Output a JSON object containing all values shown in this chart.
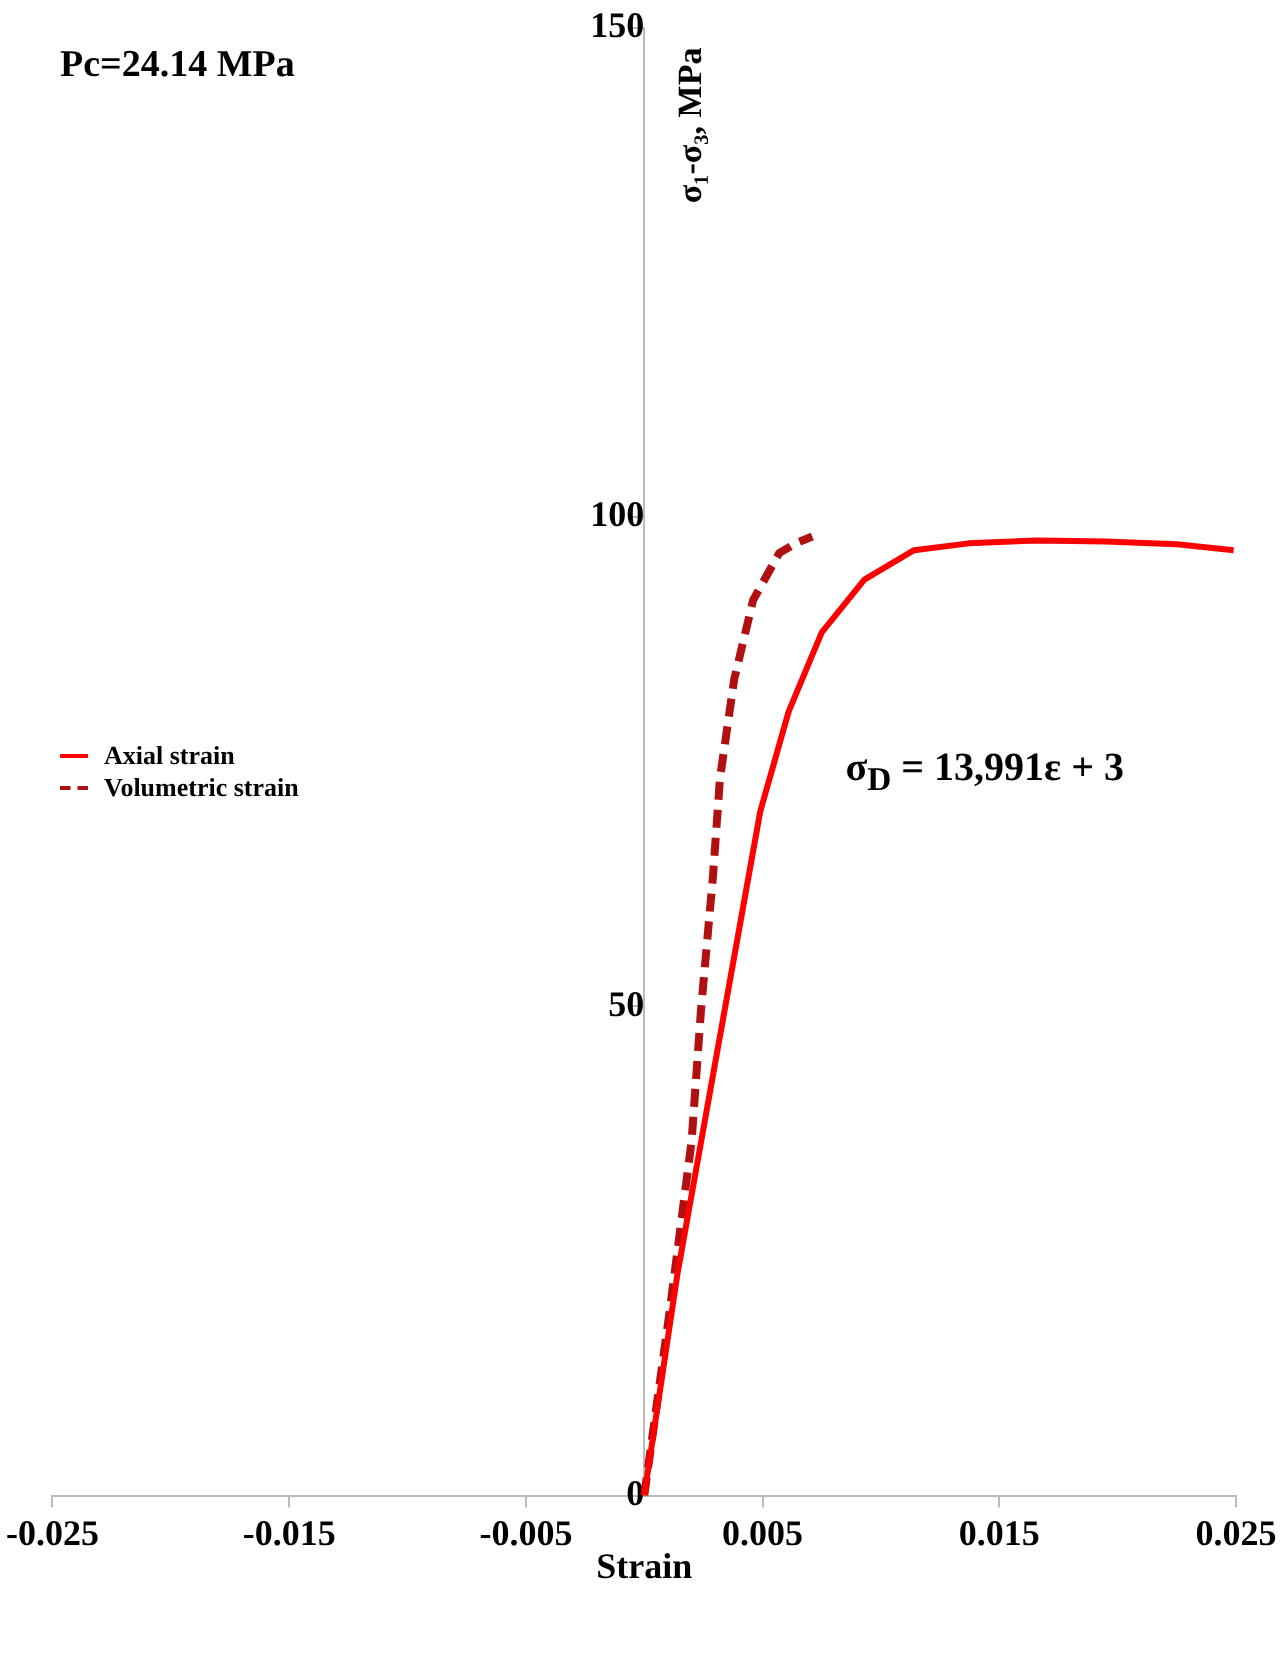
{
  "chart_data": {
    "type": "line",
    "ylabel": "σ₁-σ₃, MPa",
    "xlabel": "Strain",
    "annotations": [
      "Pc=24.14 MPa",
      "σ$_{D}$ = 13,991ε + 3"
    ],
    "xlim": [
      -0.025,
      0.025
    ],
    "xticks": [
      -0.025,
      -0.015,
      -0.005,
      0.005,
      0.015,
      0.025
    ],
    "ylim": [
      0,
      150
    ],
    "yticks": [
      0,
      50,
      100,
      150
    ],
    "grid": false,
    "legend": "left",
    "marker": "none",
    "series": [
      {
        "name": "Axial strain",
        "color": "#ff0000",
        "line_style": "solid",
        "x": [
          0,
          0.0014,
          0.0029,
          0.0039,
          0.0049,
          0.0061,
          0.0075,
          0.0093,
          0.0114,
          0.0137,
          0.0166,
          0.0195,
          0.0225,
          0.0249
        ],
        "values": [
          0,
          22.6,
          42.9,
          56.4,
          69.9,
          80.1,
          88.2,
          93.6,
          96.6,
          97.3,
          97.6,
          97.5,
          97.2,
          96.6
        ]
      },
      {
        "name": "Volumetric strain",
        "color": "#b01010",
        "line_style": "dashed",
        "x": [
          0,
          0.0011,
          0.002,
          0.0024,
          0.0029,
          0.0032,
          0.0038,
          0.0046,
          0.0057,
          0.0064,
          0.0071
        ],
        "values": [
          0,
          19.3,
          36.2,
          49.7,
          63.2,
          73.3,
          83.4,
          91.5,
          96.3,
          97.3,
          98.0
        ]
      }
    ]
  }
}
